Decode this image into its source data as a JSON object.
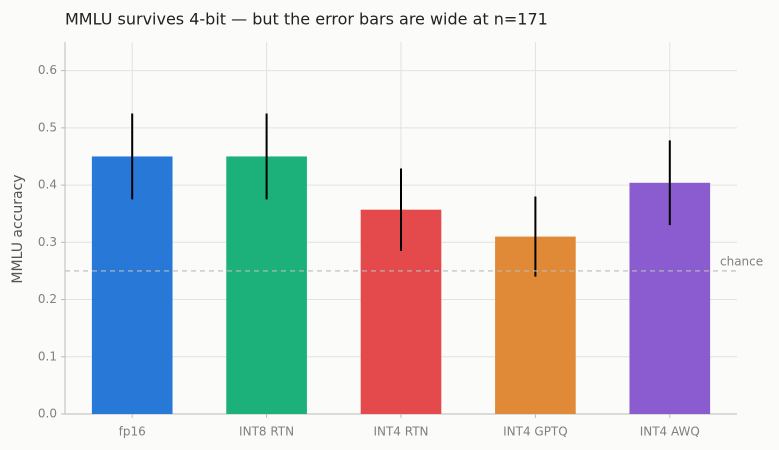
{
  "chart_data": {
    "type": "bar",
    "title": "MMLU survives 4-bit — but the error bars are wide at n=171",
    "y_label": "MMLU accuracy",
    "categories": [
      "fp16",
      "INT8 RTN",
      "INT4 RTN",
      "INT4 GPTQ",
      "INT4 AWQ"
    ],
    "values": [
      0.45,
      0.45,
      0.357,
      0.31,
      0.404
    ],
    "errors": [
      0.075,
      0.075,
      0.072,
      0.07,
      0.074
    ],
    "colors": [
      "#2878d8",
      "#1cb07a",
      "#e44a4b",
      "#e08a38",
      "#8b5cd0"
    ],
    "ylim": [
      0,
      0.65
    ],
    "yticks": [
      {
        "value": 0,
        "label": "0.0"
      },
      0.1,
      0.2,
      0.3,
      0.4,
      0.5,
      0.6
    ],
    "reference_line": {
      "value": 0.25,
      "label": "chance"
    },
    "grid": true
  }
}
